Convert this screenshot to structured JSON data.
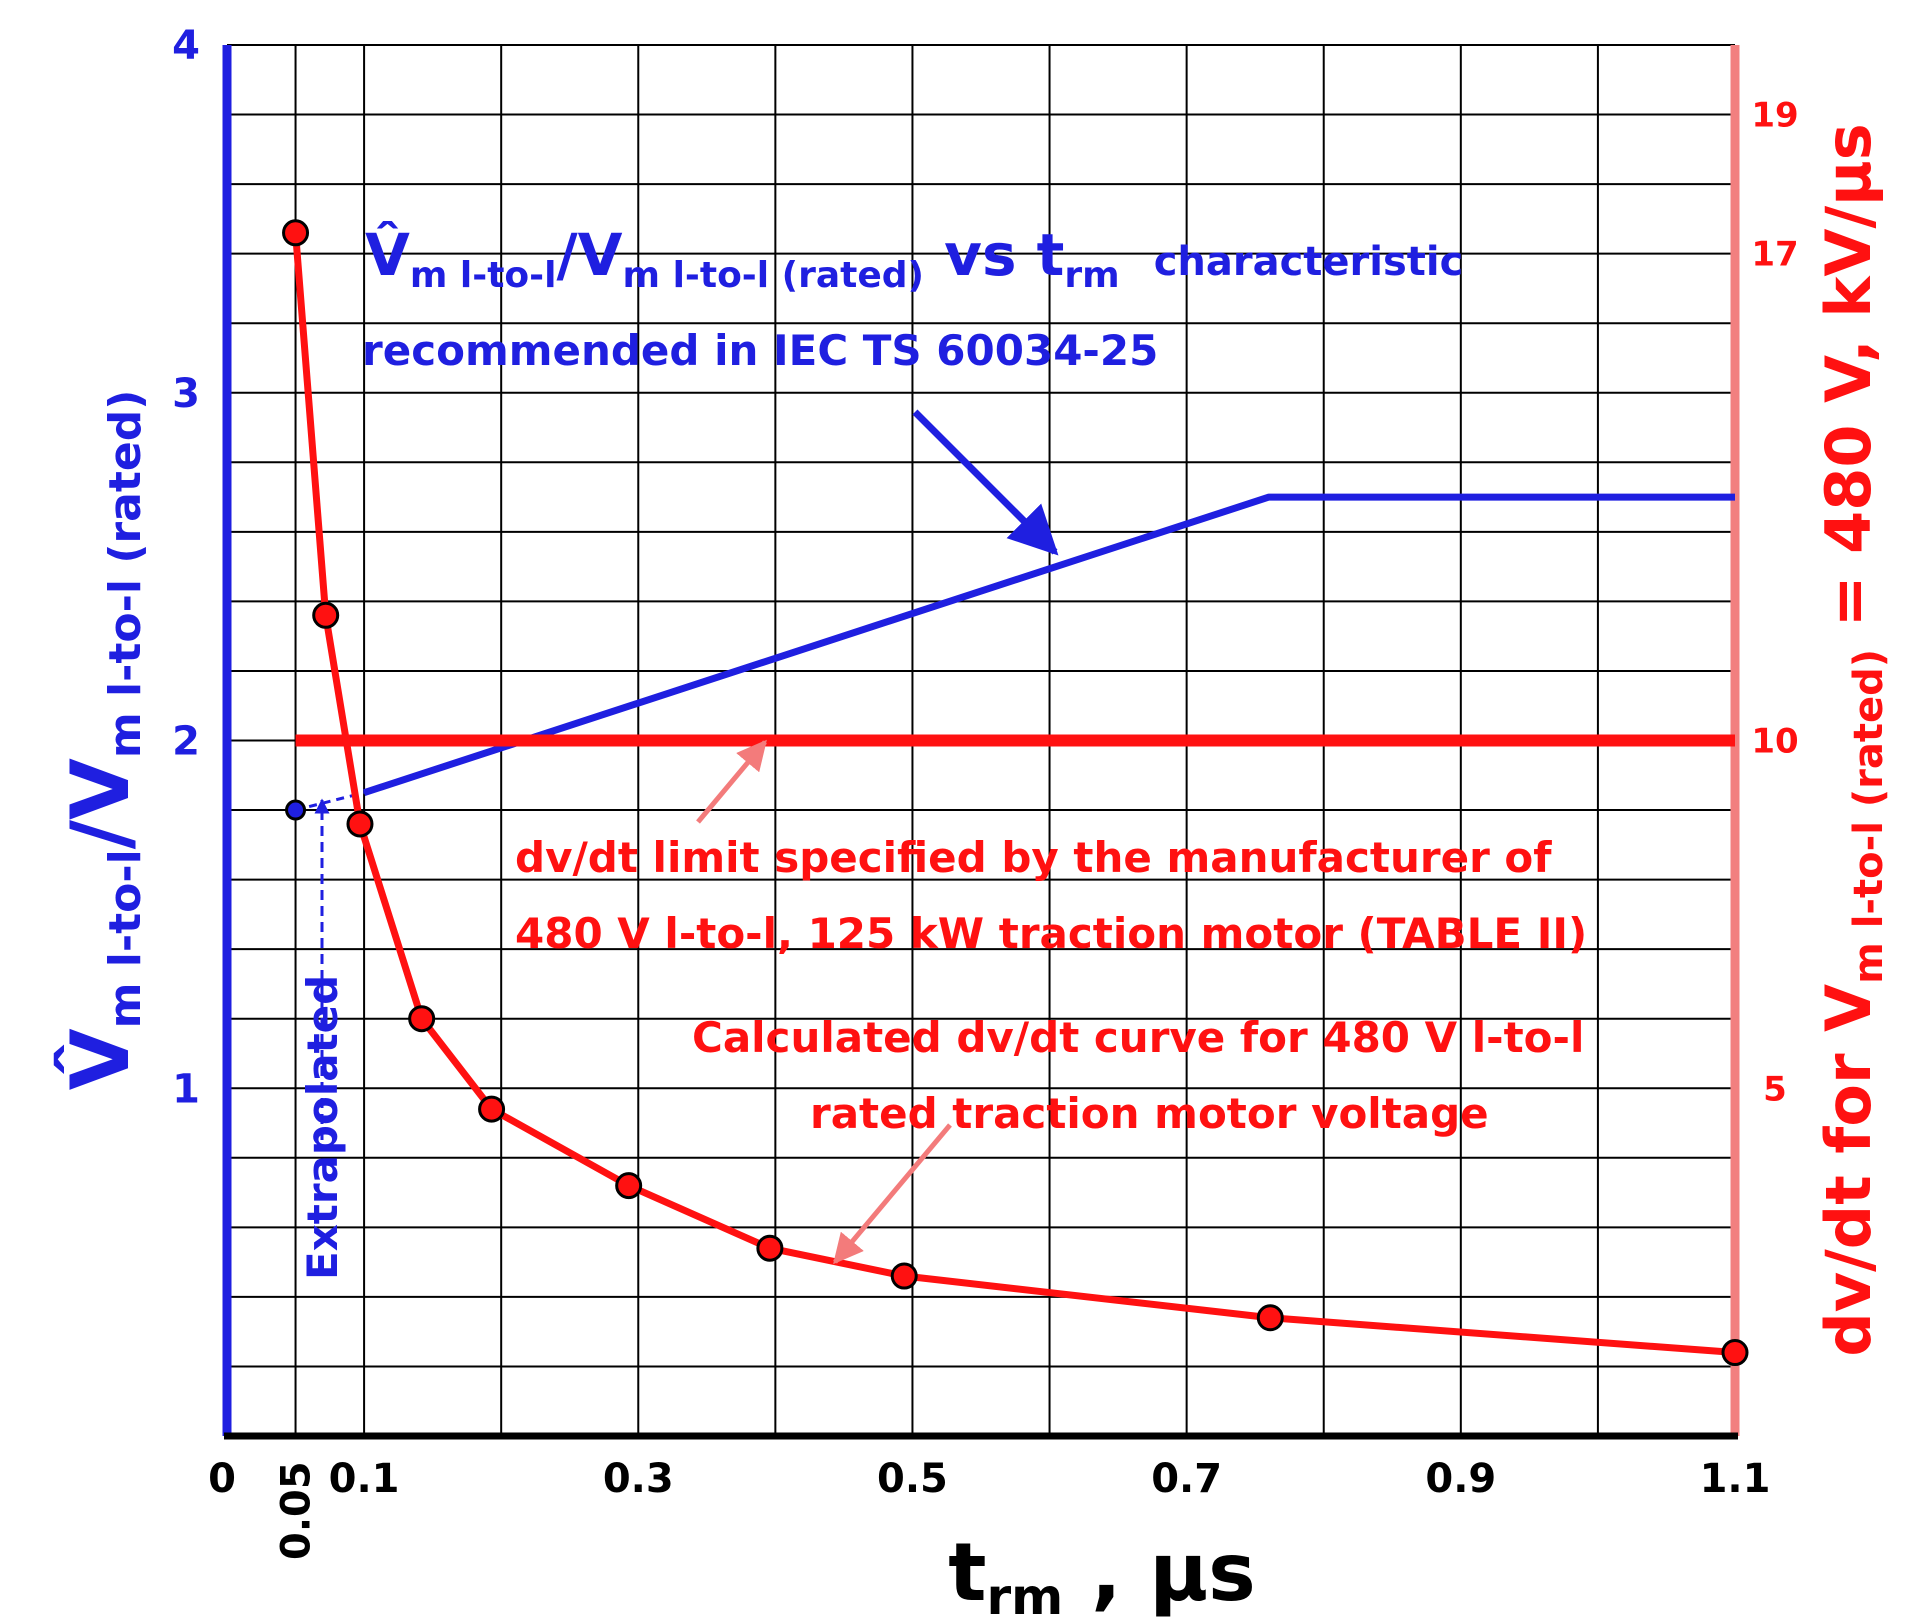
{
  "chart_data": {
    "type": "line",
    "xlabel": {
      "main": "t",
      "sub": "rm",
      "rest": " ,  μs"
    },
    "xlim": [
      0,
      1.1
    ],
    "x_ticks": [
      "0",
      "0.05",
      "0.1",
      "0.3",
      "0.5",
      "0.7",
      "0.9",
      "1.1"
    ],
    "x_tick_values": [
      0,
      0.05,
      0.1,
      0.3,
      0.5,
      0.7,
      0.9,
      1.1
    ],
    "y_left": {
      "label": {
        "main": "V̂",
        "sub1": "m l-to-l",
        "sep": "/V",
        "sub2": "m l-to-l (rated)"
      },
      "ylim": [
        0,
        4
      ],
      "ticks": [
        "1",
        "2",
        "3",
        "4"
      ],
      "tick_values": [
        1,
        2,
        3,
        4
      ],
      "color": "#1f1fe0"
    },
    "y_right": {
      "label": {
        "pre": "dv/dt for V",
        "sub": "m l-to-l (rated)",
        "post": " = 480 V,  kV/μs"
      },
      "ylim": [
        0,
        20
      ],
      "ticks": [
        "5",
        "10",
        "17",
        "19"
      ],
      "tick_values": [
        5,
        10,
        17,
        19
      ],
      "color": "#ff1111"
    },
    "grid": true,
    "series": [
      {
        "name": "V̂m l-to-l/Vm l-to-l (rated) vs trm characteristic recommended in IEC TS 60034-25",
        "axis": "left",
        "color": "#1f1fe0",
        "x": [
          0.1,
          0.76,
          1.1
        ],
        "y": [
          1.85,
          2.7,
          2.7
        ]
      },
      {
        "name": "Extrapolated",
        "axis": "left",
        "color": "#1f1fe0",
        "dashed": true,
        "x": [
          0.05,
          0.1
        ],
        "y": [
          1.8,
          1.85
        ]
      },
      {
        "name": "dv/dt limit specified by the manufacturer of 480 V l-to-l, 125 kW traction motor (TABLE II)",
        "axis": "right",
        "color": "#ff1111",
        "x": [
          0.05,
          1.1
        ],
        "y": [
          10,
          10
        ]
      },
      {
        "name": "Calculated dv/dt curve for 480 V l-to-l rated traction motor voltage",
        "axis": "right",
        "color": "#ff1111",
        "markers": true,
        "x": [
          0.05,
          0.072,
          0.097,
          0.142,
          0.193,
          0.293,
          0.396,
          0.494,
          0.761,
          1.1
        ],
        "y": [
          17.3,
          11.8,
          8.8,
          6.0,
          4.7,
          3.6,
          2.7,
          2.3,
          1.7,
          1.2
        ]
      }
    ],
    "annotations": {
      "blue_title": {
        "main": "V̂",
        "sub1": "m l-to-l",
        "sep": "/V",
        "sub2": "m l-to-l (rated)",
        "vs": " vs t",
        "sub3": "rm",
        "tail": "characteristic"
      },
      "blue_line2": "recommended in IEC TS 60034-25",
      "extrapolated": "Extrapolated",
      "limit_line1": "dv/dt limit specified by the manufacturer of",
      "limit_line2": "480 V l-to-l, 125 kW traction motor (TABLE II)",
      "calc_line1": "Calculated dv/dt curve for 480 V l-to-l",
      "calc_line2": "rated traction motor voltage"
    }
  }
}
